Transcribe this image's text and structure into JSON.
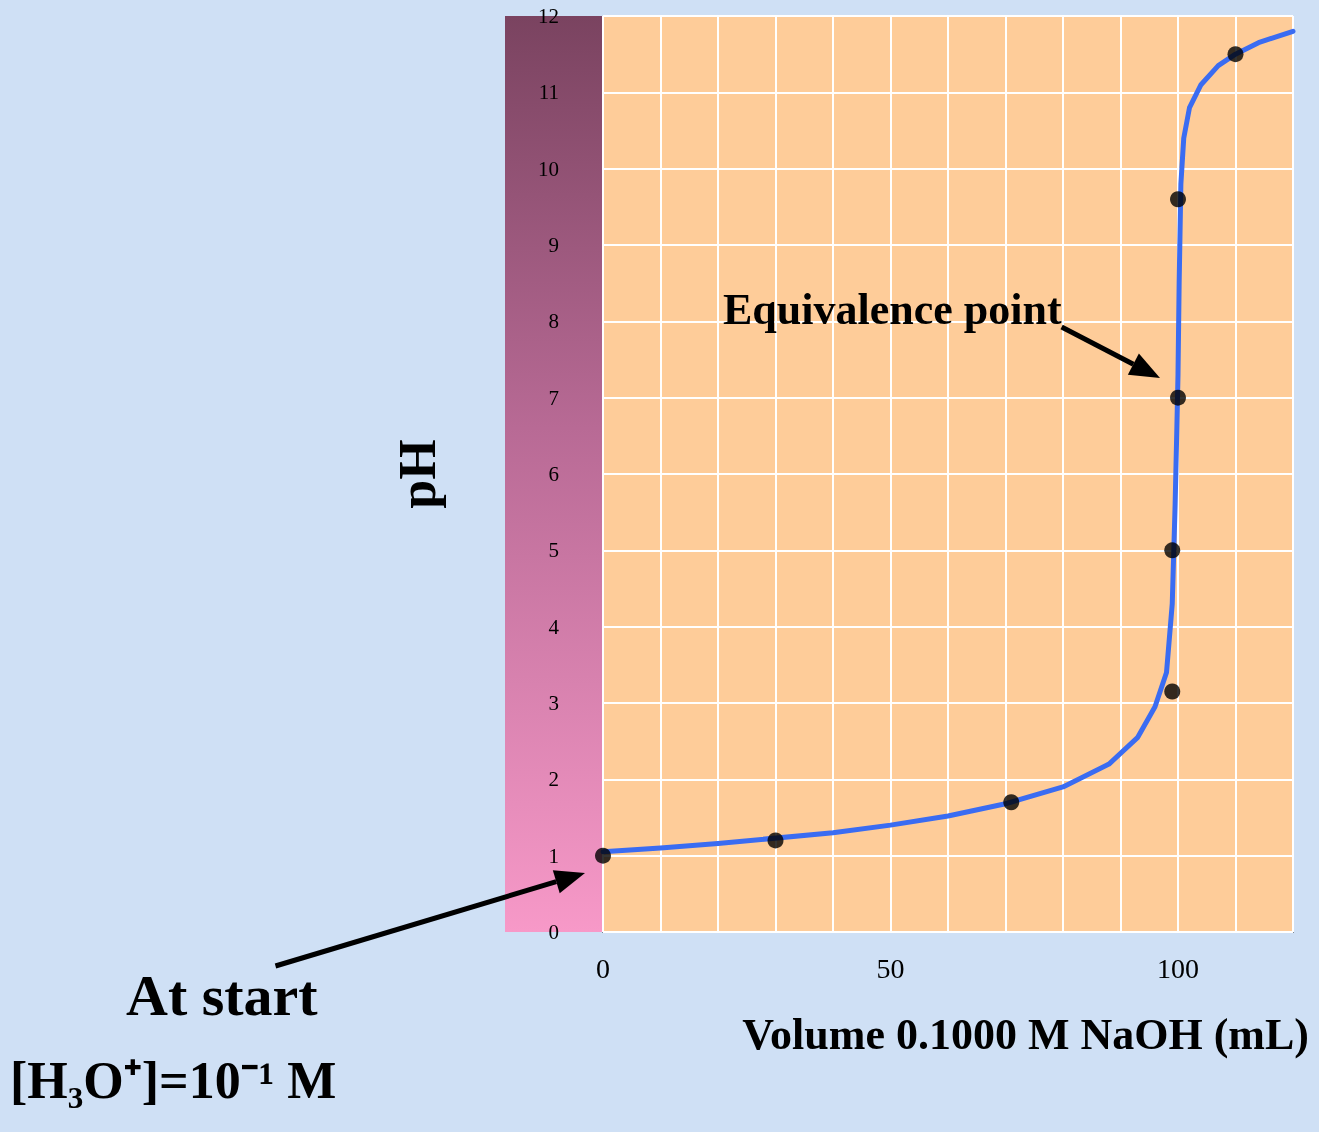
{
  "chart_data": {
    "type": "line",
    "xlabel": "Volume 0.1000 M NaOH (mL)",
    "ylabel": "pH",
    "xlim": [
      0,
      120
    ],
    "xticks": [
      0,
      {
        "value": 10,
        "label": null
      },
      {
        "value": 20,
        "label": null
      },
      {
        "value": 30,
        "label": null
      },
      {
        "value": 40,
        "label": null
      },
      50,
      {
        "value": 60,
        "label": null
      },
      {
        "value": 70,
        "label": null
      },
      {
        "value": 80,
        "label": null
      },
      {
        "value": 90,
        "label": null
      },
      100,
      {
        "value": 110,
        "label": null
      },
      {
        "value": 120,
        "label": null
      }
    ],
    "ylim": [
      0,
      12
    ],
    "yticks": [
      0,
      1,
      2,
      3,
      4,
      5,
      6,
      7,
      8,
      9,
      10,
      11,
      12
    ],
    "grid": true,
    "series": [
      {
        "type": "line",
        "color": "#3a6cf2",
        "marker": "none",
        "line_style": "solid",
        "x": [
          0,
          10,
          20,
          40,
          50,
          60,
          70,
          80,
          88,
          93,
          96,
          98,
          99,
          99.5,
          99.8,
          100,
          100.2,
          100.5,
          101,
          102,
          104,
          107,
          110,
          114,
          120
        ],
        "values": [
          1.05,
          1.1,
          1.16,
          1.3,
          1.4,
          1.52,
          1.68,
          1.9,
          2.2,
          2.55,
          2.95,
          3.4,
          4.3,
          5.6,
          6.6,
          7.3,
          8.5,
          9.8,
          10.4,
          10.8,
          11.1,
          11.35,
          11.5,
          11.65,
          11.8
        ]
      },
      {
        "type": "scatter",
        "color": "#000000",
        "marker": "circle",
        "x": [
          0,
          30,
          71,
          99,
          99,
          100,
          100,
          110
        ],
        "values": [
          1.0,
          1.2,
          1.7,
          3.15,
          5.0,
          7.0,
          9.6,
          11.5
        ]
      }
    ],
    "annotations": [
      "Equivalence point",
      "At start",
      "[H₃O⁺]=10⁻¹ M"
    ]
  }
}
